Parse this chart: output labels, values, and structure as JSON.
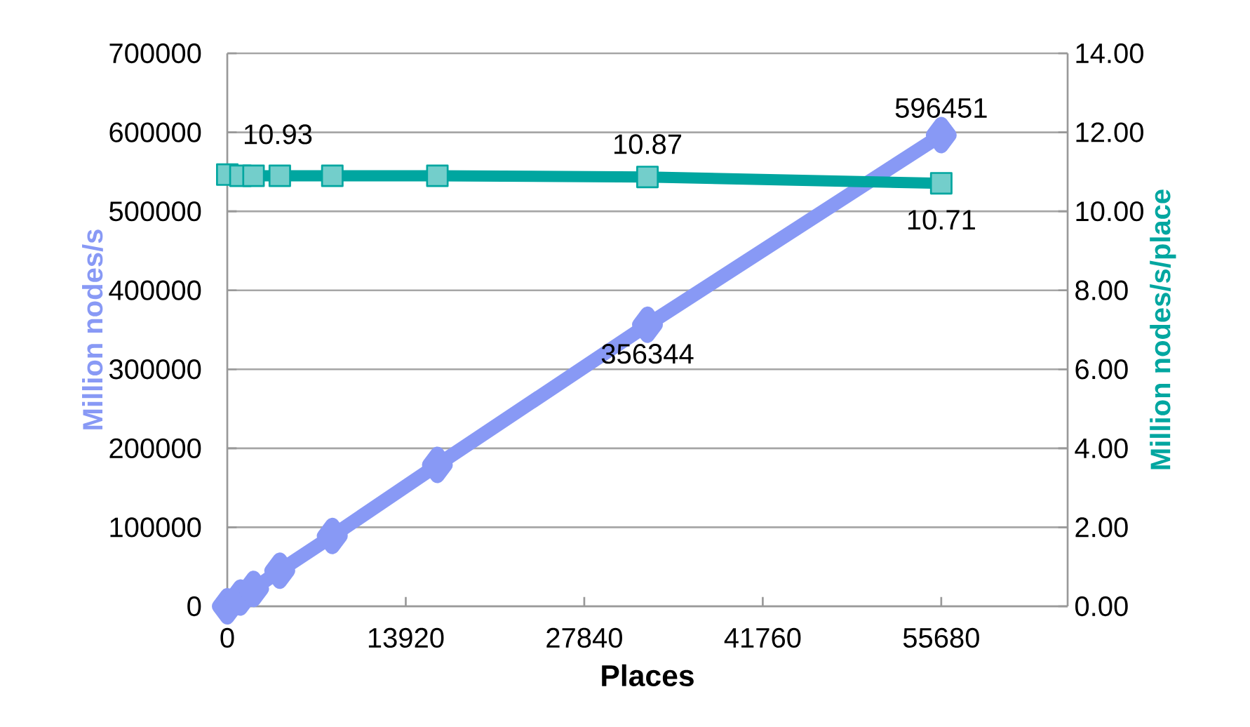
{
  "chart_data": {
    "type": "line",
    "xlabel": "Places",
    "ylabel": "Million nodes/s",
    "y2label": "Million nodes/s/place",
    "x": [
      1,
      1024,
      2048,
      4096,
      8192,
      16384,
      32768,
      55680
    ],
    "xlim": [
      0,
      65536
    ],
    "xticks": [
      0,
      13920,
      27840,
      41760,
      55680
    ],
    "ylim": [
      0,
      700000
    ],
    "yticks": [
      0,
      100000,
      200000,
      300000,
      400000,
      500000,
      600000,
      700000
    ],
    "y2lim": [
      0,
      14
    ],
    "y2ticks": [
      {
        "value": 0,
        "label": "0.00"
      },
      {
        "value": 2,
        "label": "2.00"
      },
      {
        "value": 4,
        "label": "4.00"
      },
      {
        "value": 6,
        "label": "6.00"
      },
      {
        "value": 8,
        "label": "8.00"
      },
      {
        "value": 10,
        "label": "10.00"
      },
      {
        "value": 12,
        "label": "12.00"
      },
      {
        "value": 14,
        "label": "14.00"
      }
    ],
    "grid": "y",
    "line_style": "solid",
    "series": [
      {
        "color": "#8899f5",
        "marker": "diamond",
        "values": [
          0,
          11000,
          22000,
          45000,
          89000,
          179000,
          356344,
          596451
        ],
        "value_labels": [
          null,
          null,
          null,
          null,
          null,
          null,
          "356344",
          "596451"
        ]
      },
      {
        "color": "#00a6a0",
        "marker": "square",
        "axis": "y2",
        "values": [
          10.93,
          10.9,
          10.9,
          10.9,
          10.9,
          10.9,
          10.87,
          10.71
        ],
        "value_labels": [
          "10.93",
          null,
          null,
          null,
          null,
          null,
          "10.87",
          "10.71"
        ]
      }
    ]
  }
}
